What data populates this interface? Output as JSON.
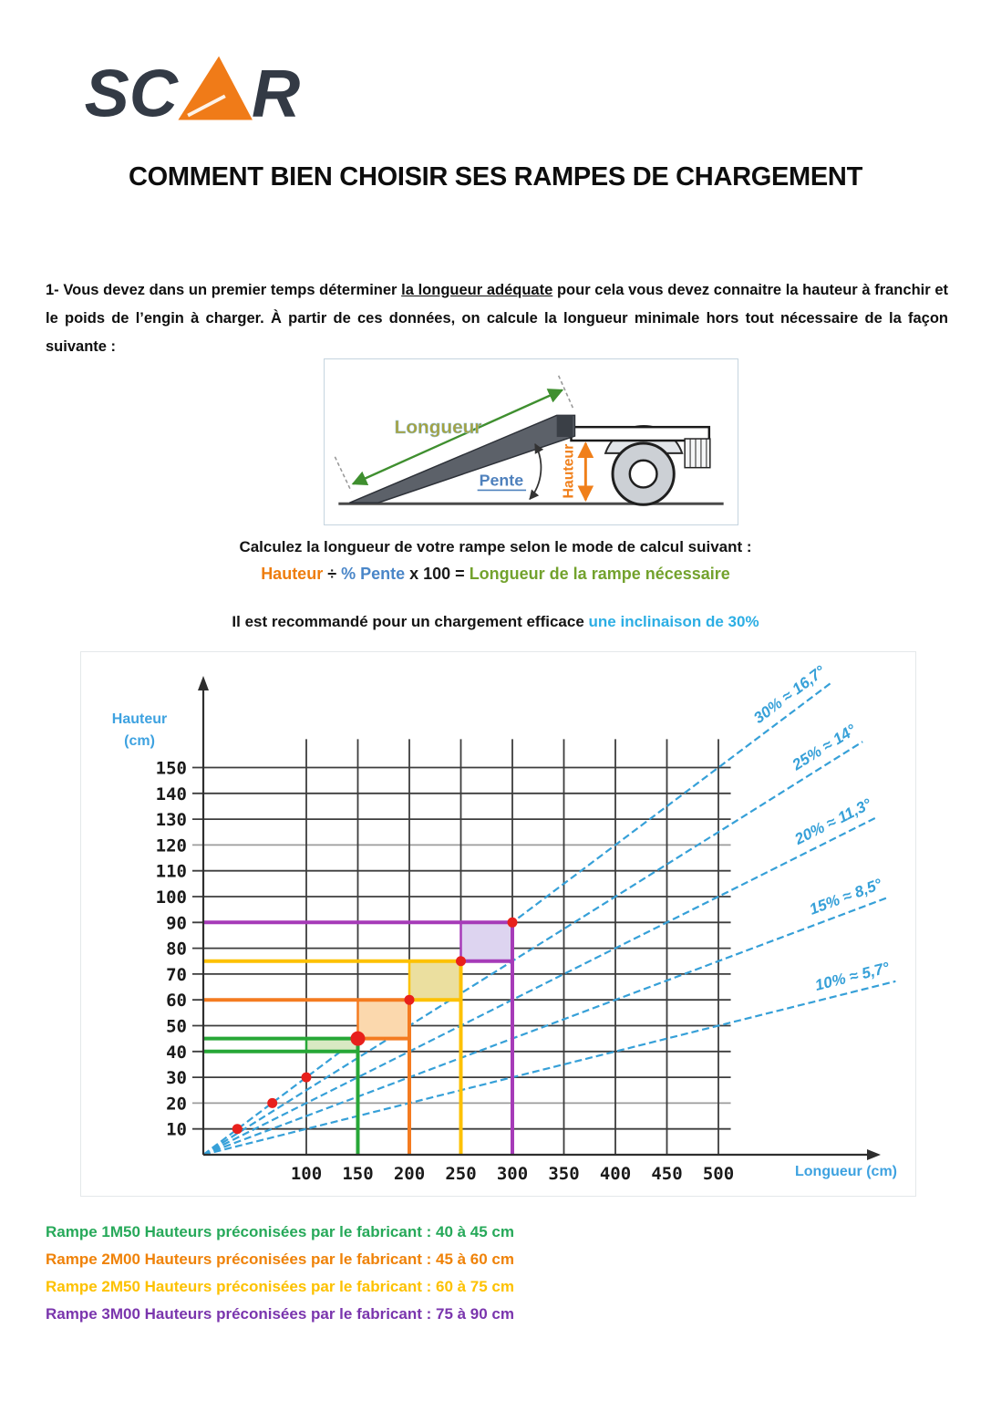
{
  "logo": {
    "text_left": "SC",
    "text_right": "R",
    "dark_color": "#333a45",
    "accent_color": "#f07b18"
  },
  "title": "COMMENT BIEN CHOISIR SES RAMPES DE CHARGEMENT",
  "intro": {
    "before": "1- Vous devez dans un premier temps déterminer ",
    "underlined": "la longueur adéquate",
    "after": " pour cela vous devez connaitre la hauteur à franchir et le poids de l’engin à charger. À partir de ces données, on calcule la longueur minimale hors tout nécessaire de la façon suivante :"
  },
  "diagram": {
    "labels": {
      "longueur": "Longueur",
      "pente": "Pente",
      "hauteur": "Hauteur"
    },
    "colors": {
      "longueur_text": "#a8a23a",
      "pente_text": "#4f81bd",
      "hauteur_text": "#f07f1a",
      "ramp_fill": "#5c6169",
      "green_arrow": "#3f8f2f"
    }
  },
  "formula": {
    "instruction": "Calculez la longueur de votre rampe selon le mode de calcul suivant :",
    "parts": [
      {
        "text": "Hauteur",
        "color": "#ee7d0e"
      },
      {
        "text": " ÷ ",
        "color": "#1a1a1a"
      },
      {
        "text": "% Pente",
        "color": "#4a86c8"
      },
      {
        "text": " x 100 = ",
        "color": "#1a1a1a"
      },
      {
        "text": "Longueur de la rampe nécessaire",
        "color": "#73a22d"
      }
    ]
  },
  "recommendation": {
    "prefix": "Il est recommandé pour un chargement efficace ",
    "highlight": "une inclinaison de 30%",
    "highlight_color": "#2caee4"
  },
  "chart_data": {
    "type": "line",
    "xlabel": "Longueur (cm)",
    "ylabel_line1": "Hauteur",
    "ylabel_line2": "(cm)",
    "axis_label_color": "#3ea2e0",
    "x_ticks": [
      100,
      150,
      200,
      250,
      300,
      350,
      400,
      450,
      500
    ],
    "y_ticks": [
      10,
      20,
      30,
      40,
      50,
      60,
      70,
      80,
      90,
      100,
      110,
      120,
      130,
      140,
      150
    ],
    "light_gridlines_y": [
      20,
      120
    ],
    "xlim": [
      0,
      680
    ],
    "ylim": [
      0,
      190
    ],
    "grid_x_max": 512,
    "grid_y_max": 161,
    "line_color": "#36a0d8",
    "point_color": "#e8201c",
    "slope_lines": [
      {
        "label": "30% ≈ 16,7°",
        "slope": 0.3,
        "x_end": 610
      },
      {
        "label": "25% ≈ 14°",
        "slope": 0.25,
        "x_end": 640
      },
      {
        "label": "20% ≈ 11,3°",
        "slope": 0.2,
        "x_end": 655
      },
      {
        "label": "15% ≈ 8,5°",
        "slope": 0.15,
        "x_end": 665
      },
      {
        "label": "10% ≈ 5,7°",
        "slope": 0.1,
        "x_end": 672
      }
    ],
    "points": [
      {
        "x": 33,
        "y": 10
      },
      {
        "x": 67,
        "y": 20
      },
      {
        "x": 100,
        "y": 30
      },
      {
        "x": 150,
        "y": 45,
        "big": true
      },
      {
        "x": 200,
        "y": 60
      },
      {
        "x": 250,
        "y": 75
      },
      {
        "x": 300,
        "y": 90
      }
    ],
    "ramps": [
      {
        "name": "Rampe 1M50",
        "length": 150,
        "height_min": 40,
        "height_max": 45,
        "box_from": 100,
        "bottom_from": 0,
        "color": "#27a737",
        "fill": "#d9e9c3"
      },
      {
        "name": "Rampe 2M00",
        "length": 200,
        "height_min": 45,
        "height_max": 60,
        "box_from": 150,
        "bottom_from": 150,
        "color": "#f47b20",
        "fill": "#fbd8ad"
      },
      {
        "name": "Rampe 2M50",
        "length": 250,
        "height_min": 60,
        "height_max": 75,
        "box_from": 200,
        "bottom_from": 200,
        "color": "#fdc100",
        "fill": "#ebdf9f"
      },
      {
        "name": "Rampe 3M00",
        "length": 300,
        "height_min": 75,
        "height_max": 90,
        "box_from": 250,
        "bottom_from": 250,
        "color": "#a63bb8",
        "fill": "#ddd4f0"
      }
    ]
  },
  "legend": {
    "items": [
      {
        "text": "Rampe 1M50 Hauteurs préconisées par le fabricant : 40 à 45 cm",
        "color": "#27a95a"
      },
      {
        "text": "Rampe 2M00 Hauteurs préconisées par le fabricant : 45 à 60 cm",
        "color": "#ef8208"
      },
      {
        "text": "Rampe 2M50 Hauteurs préconisées par le fabricant : 60 à 75 cm",
        "color": "#fdc100"
      },
      {
        "text": "Rampe 3M00 Hauteurs préconisées par le fabricant : 75 à 90 cm",
        "color": "#7a35ad"
      }
    ]
  }
}
